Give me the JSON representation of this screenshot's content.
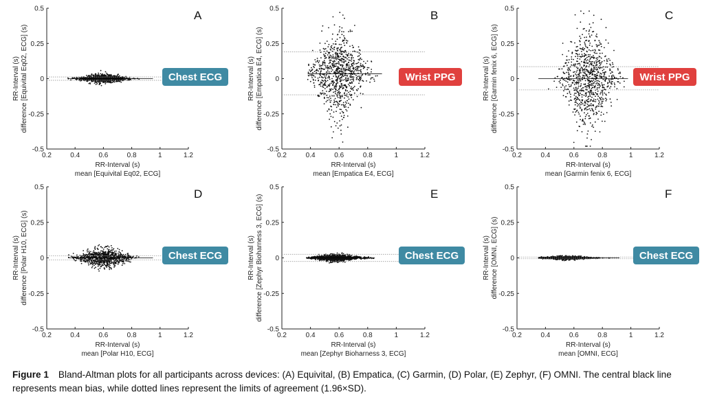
{
  "caption": {
    "label": "Figure 1",
    "text": "Bland-Altman plots for all participants across devices: (A) Equivital, (B) Empatica, (C) Garmin, (D) Polar, (E) Zephyr, (F) OMNI. The central black line represents mean bias, while dotted lines represent the limits of agreement (1.96×SD)."
  },
  "colors": {
    "chest_badge": "#3f8aa3",
    "wrist_badge": "#e0403e",
    "points": "#111111",
    "loa_line": "#9a9a9a"
  },
  "chart_data": [
    {
      "type": "scatter",
      "panel": "A",
      "xlabel": "RR-Interval (s)",
      "xlabel2": "mean [Equivital Eq02, ECG]",
      "ylabel": "RR-Interval (s)",
      "ylabel2": "difference [Equivital Eq02, ECG] (s)",
      "xlim": [
        0.2,
        1.2
      ],
      "ylim": [
        -0.5,
        0.5
      ],
      "xticks": [
        "0.2",
        "0.4",
        "0.6",
        "0.8",
        "1",
        "1.2"
      ],
      "yticks": [
        "0.5",
        "0.25",
        "0",
        "-0.25",
        "-0.5"
      ],
      "bias": 0.0,
      "loa": [
        0.012,
        -0.012
      ],
      "cloud": {
        "x_range": [
          0.35,
          0.95
        ],
        "center": 0.6,
        "spread": 0.035
      },
      "badge": "Chest ECG",
      "badge_kind": "chest"
    },
    {
      "type": "scatter",
      "panel": "B",
      "xlabel": "RR-Interval (s)",
      "xlabel2": "mean [Empatica E4, ECG]",
      "ylabel": "RR-Interval (s)",
      "ylabel2": "difference [Empatica E4, ECG] (s)",
      "xlim": [
        0.2,
        1.2
      ],
      "ylim": [
        -0.5,
        0.5
      ],
      "xticks": [
        "0.2",
        "0.4",
        "0.6",
        "0.8",
        "1",
        "1.2"
      ],
      "yticks": [
        "0.5",
        "0.25",
        "0",
        "-0.25",
        "-0.5"
      ],
      "bias": 0.035,
      "loa": [
        0.19,
        -0.115
      ],
      "cloud": {
        "x_range": [
          0.38,
          0.9
        ],
        "center": 0.6,
        "spread": 0.38
      },
      "badge": "Wrist PPG",
      "badge_kind": "wrist"
    },
    {
      "type": "scatter",
      "panel": "C",
      "xlabel": "RR-Interval (s)",
      "xlabel2": "mean [Garmin fenix 6, ECG]",
      "ylabel": "RR-Interval (s)",
      "ylabel2": "difference [Garmin fenix 6, ECG] (s)",
      "xlim": [
        0.2,
        1.2
      ],
      "ylim": [
        -0.5,
        0.5
      ],
      "xticks": [
        "0.2",
        "0.4",
        "0.6",
        "0.8",
        "1",
        "1.2"
      ],
      "yticks": [
        "0.5",
        "0.25",
        "0",
        "-0.25",
        "-0.5"
      ],
      "bias": 0.0,
      "loa": [
        0.085,
        -0.08
      ],
      "cloud": {
        "x_range": [
          0.35,
          0.98
        ],
        "center": 0.7,
        "spread": 0.45
      },
      "badge": "Wrist PPG",
      "badge_kind": "wrist"
    },
    {
      "type": "scatter",
      "panel": "D",
      "xlabel": "RR-Interval (s)",
      "xlabel2": "mean [Polar H10, ECG]",
      "ylabel": "RR-Interval (s)",
      "ylabel2": "difference [Polar H10, ECG] (s)",
      "xlim": [
        0.2,
        1.2
      ],
      "ylim": [
        -0.5,
        0.5
      ],
      "xticks": [
        "0.2",
        "0.4",
        "0.6",
        "0.8",
        "1",
        "1.2"
      ],
      "yticks": [
        "0.5",
        "0.25",
        "0",
        "-0.25",
        "-0.5"
      ],
      "bias": 0.0,
      "loa": [
        0.015,
        -0.015
      ],
      "cloud": {
        "x_range": [
          0.35,
          0.95
        ],
        "center": 0.6,
        "spread": 0.08
      },
      "badge": "Chest ECG",
      "badge_kind": "chest"
    },
    {
      "type": "scatter",
      "panel": "E",
      "xlabel": "RR-Interval (s)",
      "xlabel2": "mean [Zephyr Bioharness 3, ECG]",
      "ylabel": "RR-Interval (s)",
      "ylabel2": "difference [Zephyr Bioharness 3, ECG] (s)",
      "xlim": [
        0.2,
        1.2
      ],
      "ylim": [
        -0.5,
        0.5
      ],
      "xticks": [
        "0.2",
        "0.4",
        "0.6",
        "0.8",
        "1",
        "1.2"
      ],
      "yticks": [
        "0.5",
        "0.25",
        "0",
        "-0.25",
        "-0.5"
      ],
      "bias": 0.0,
      "loa": [
        0.025,
        -0.025
      ],
      "cloud": {
        "x_range": [
          0.37,
          0.85
        ],
        "center": 0.58,
        "spread": 0.03
      },
      "badge": "Chest ECG",
      "badge_kind": "chest"
    },
    {
      "type": "scatter",
      "panel": "F",
      "xlabel": "RR-Interval (s)",
      "xlabel2": "mean [OMNI, ECG]",
      "ylabel": "RR-Interval (s)",
      "ylabel2": "difference [OMNI, ECG] (s)",
      "xlim": [
        0.2,
        1.2
      ],
      "ylim": [
        -0.5,
        0.5
      ],
      "xticks": [
        "0.2",
        "0.4",
        "0.6",
        "0.8",
        "1",
        "1.2"
      ],
      "yticks": [
        "0.5",
        "0.25",
        "0",
        "-0.25",
        "-0.5"
      ],
      "bias": 0.0,
      "loa": [
        0.006,
        -0.006
      ],
      "cloud": {
        "x_range": [
          0.35,
          0.92
        ],
        "center": 0.55,
        "spread": 0.015
      },
      "badge": "Chest ECG",
      "badge_kind": "chest"
    }
  ]
}
